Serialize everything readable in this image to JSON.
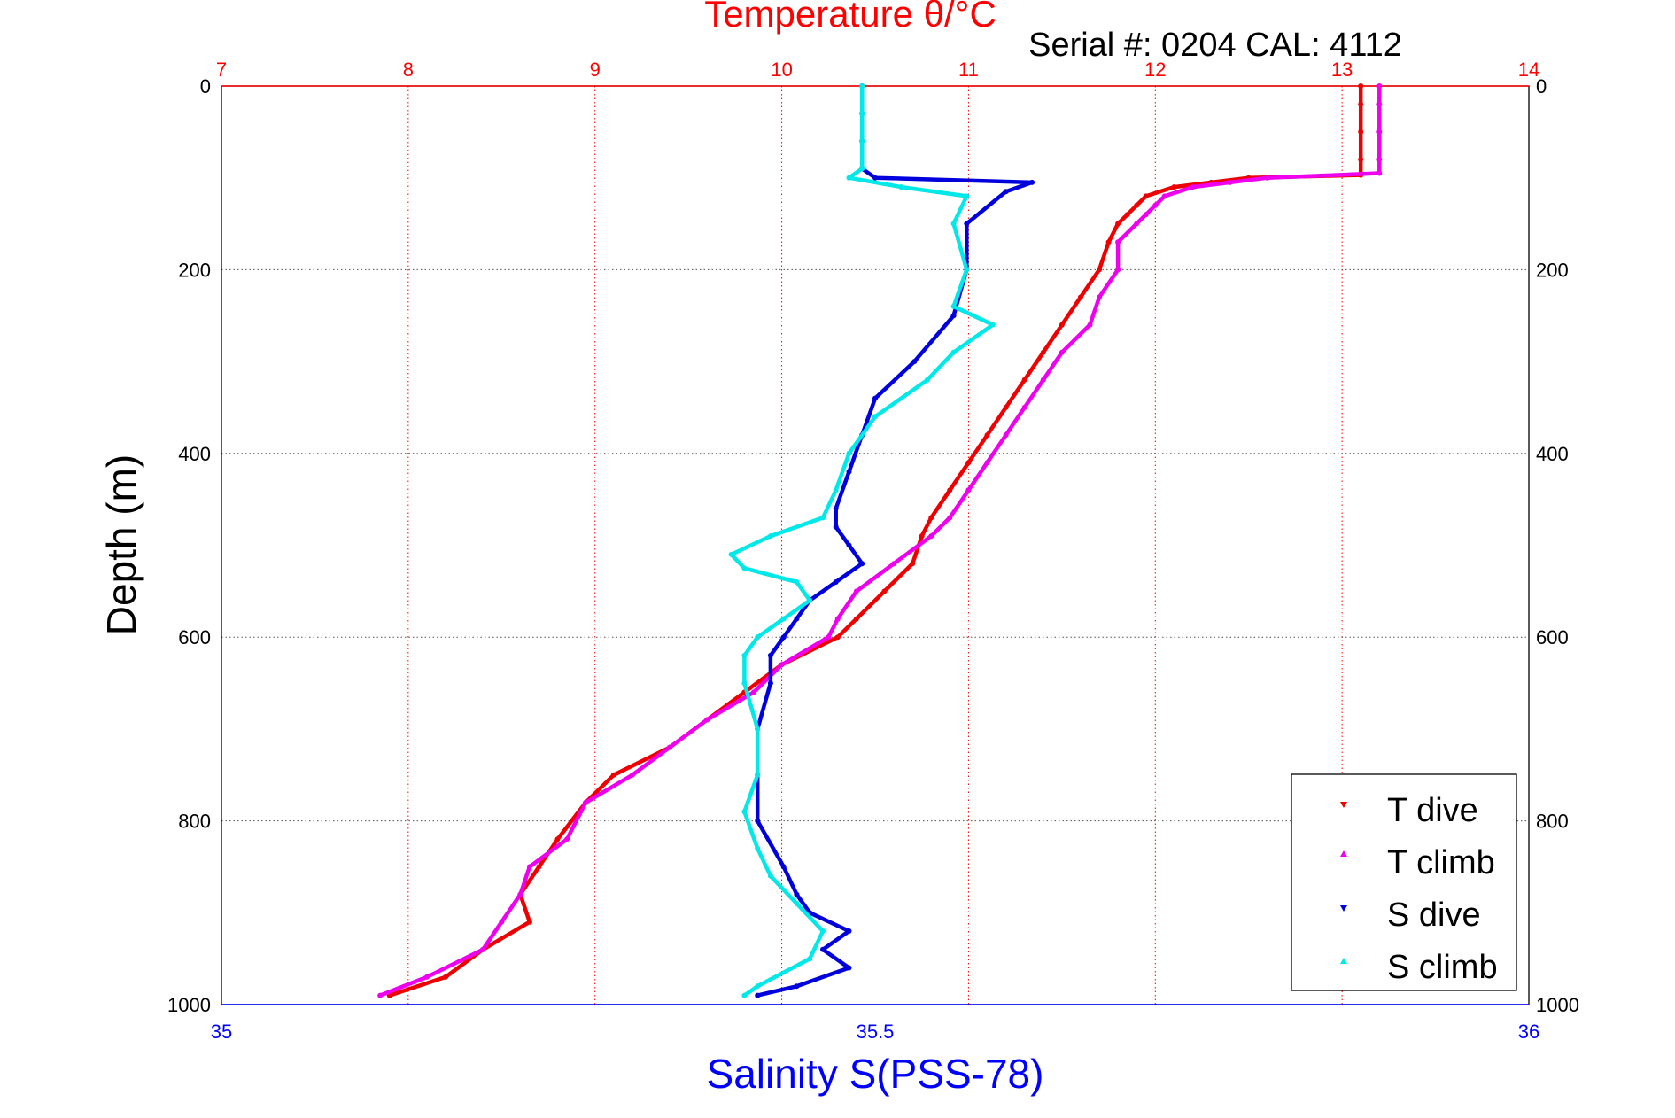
{
  "header": {
    "serial_text": "Serial #: 0204  CAL: 4112"
  },
  "colors": {
    "temperature_axis": "#ff0000",
    "salinity_axis": "#0000ff",
    "t_dive": "#ee0000",
    "t_climb": "#ee00ee",
    "s_dive": "#0000dd",
    "s_climb": "#00e8e8",
    "grid": "#555555"
  },
  "chart_data": {
    "type": "scatter",
    "title": "Temperature θ/°C",
    "temperature_axis": {
      "label": "Temperature θ/°C",
      "range": [
        7,
        14
      ],
      "ticks": [
        "7",
        "8",
        "9",
        "10",
        "11",
        "12",
        "13",
        "14"
      ]
    },
    "salinity_axis": {
      "label": "Salinity S(PSS-78)",
      "range": [
        35,
        36
      ],
      "ticks": [
        "35",
        "35.5",
        "36"
      ]
    },
    "depth_axis": {
      "label": "Depth (m)",
      "range": [
        0,
        1000
      ],
      "reversed": true,
      "ticks": [
        "0",
        "200",
        "400",
        "600",
        "800",
        "1000"
      ]
    },
    "grid": true,
    "legend_position": "bottom-right",
    "series": [
      {
        "name": "T dive",
        "axis": "temperature",
        "depth": [
          0,
          20,
          50,
          80,
          97,
          100,
          105,
          110,
          120,
          130,
          140,
          150,
          170,
          200,
          230,
          260,
          290,
          320,
          350,
          380,
          410,
          440,
          470,
          490,
          520,
          550,
          580,
          600,
          630,
          660,
          690,
          720,
          750,
          780,
          820,
          850,
          880,
          910,
          940,
          970,
          990
        ],
        "values": [
          13.1,
          13.1,
          13.1,
          13.1,
          13.1,
          12.5,
          12.3,
          12.1,
          11.95,
          11.9,
          11.85,
          11.8,
          11.75,
          11.7,
          11.6,
          11.5,
          11.4,
          11.3,
          11.2,
          11.1,
          11.0,
          10.9,
          10.8,
          10.75,
          10.7,
          10.55,
          10.4,
          10.3,
          10.0,
          9.8,
          9.6,
          9.4,
          9.1,
          8.95,
          8.8,
          8.7,
          8.6,
          8.65,
          8.4,
          8.2,
          7.9
        ]
      },
      {
        "name": "T climb",
        "axis": "temperature",
        "depth": [
          0,
          20,
          50,
          80,
          95,
          100,
          105,
          110,
          120,
          130,
          140,
          150,
          170,
          200,
          230,
          260,
          290,
          320,
          350,
          380,
          410,
          440,
          470,
          490,
          520,
          550,
          580,
          600,
          630,
          660,
          690,
          720,
          750,
          780,
          820,
          850,
          880,
          910,
          940,
          970,
          990
        ],
        "values": [
          13.2,
          13.2,
          13.2,
          13.2,
          13.2,
          12.6,
          12.4,
          12.2,
          12.05,
          12.0,
          11.95,
          11.9,
          11.8,
          11.8,
          11.7,
          11.65,
          11.5,
          11.4,
          11.3,
          11.2,
          11.1,
          11.0,
          10.9,
          10.8,
          10.6,
          10.4,
          10.3,
          10.25,
          10.0,
          9.85,
          9.6,
          9.4,
          9.2,
          8.95,
          8.85,
          8.65,
          8.6,
          8.5,
          8.4,
          8.1,
          7.85
        ]
      },
      {
        "name": "S dive",
        "axis": "salinity",
        "depth": [
          0,
          30,
          60,
          90,
          100,
          105,
          115,
          150,
          200,
          250,
          300,
          340,
          380,
          420,
          460,
          480,
          500,
          520,
          540,
          560,
          580,
          600,
          620,
          650,
          700,
          750,
          800,
          850,
          880,
          900,
          920,
          940,
          960,
          980,
          990
        ],
        "values": [
          35.49,
          35.49,
          35.49,
          35.49,
          35.5,
          35.62,
          35.6,
          35.57,
          35.57,
          35.56,
          35.53,
          35.5,
          35.49,
          35.48,
          35.47,
          35.47,
          35.48,
          35.49,
          35.47,
          35.45,
          35.44,
          35.43,
          35.42,
          35.42,
          35.41,
          35.41,
          35.41,
          35.43,
          35.44,
          35.45,
          35.48,
          35.46,
          35.48,
          35.44,
          35.41
        ]
      },
      {
        "name": "S climb",
        "axis": "salinity",
        "depth": [
          0,
          30,
          60,
          90,
          100,
          110,
          120,
          150,
          200,
          240,
          260,
          290,
          320,
          360,
          400,
          440,
          470,
          490,
          510,
          525,
          540,
          560,
          580,
          600,
          620,
          650,
          700,
          750,
          790,
          830,
          860,
          890,
          920,
          950,
          980,
          990
        ],
        "values": [
          35.49,
          35.49,
          35.49,
          35.49,
          35.48,
          35.52,
          35.57,
          35.56,
          35.57,
          35.56,
          35.59,
          35.56,
          35.54,
          35.5,
          35.48,
          35.47,
          35.46,
          35.42,
          35.39,
          35.4,
          35.44,
          35.45,
          35.43,
          35.41,
          35.4,
          35.4,
          35.41,
          35.41,
          35.4,
          35.41,
          35.42,
          35.44,
          35.46,
          35.45,
          35.41,
          35.4
        ]
      }
    ]
  }
}
